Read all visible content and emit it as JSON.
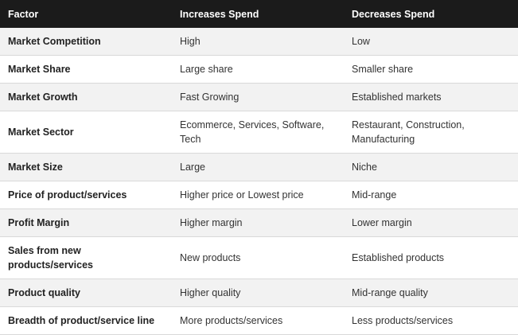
{
  "table": {
    "headers": [
      "Factor",
      "Increases Spend",
      "Decreases Spend"
    ],
    "rows": [
      {
        "factor": "Market Competition",
        "increases": "High",
        "decreases": "Low"
      },
      {
        "factor": "Market Share",
        "increases": "Large share",
        "decreases": "Smaller share"
      },
      {
        "factor": "Market Growth",
        "increases": "Fast Growing",
        "decreases": "Established markets"
      },
      {
        "factor": "Market Sector",
        "increases": "Ecommerce, Services, Software, Tech",
        "decreases": "Restaurant, Construction, Manufacturing"
      },
      {
        "factor": "Market Size",
        "increases": "Large",
        "decreases": "Niche"
      },
      {
        "factor": "Price of product/services",
        "increases": "Higher price or Lowest price",
        "decreases": "Mid-range"
      },
      {
        "factor": "Profit Margin",
        "increases": "Higher margin",
        "decreases": "Lower margin"
      },
      {
        "factor": "Sales from new products/services",
        "increases": "New products",
        "decreases": "Established products"
      },
      {
        "factor": "Product quality",
        "increases": "Higher quality",
        "decreases": "Mid-range quality"
      },
      {
        "factor": "Breadth of product/service line",
        "increases": "More products/services",
        "decreases": "Less products/services"
      }
    ]
  },
  "colors": {
    "header_bg": "#1b1b1b",
    "header_text": "#ffffff",
    "row_alt_bg": "#f2f2f2",
    "row_bg": "#ffffff"
  }
}
